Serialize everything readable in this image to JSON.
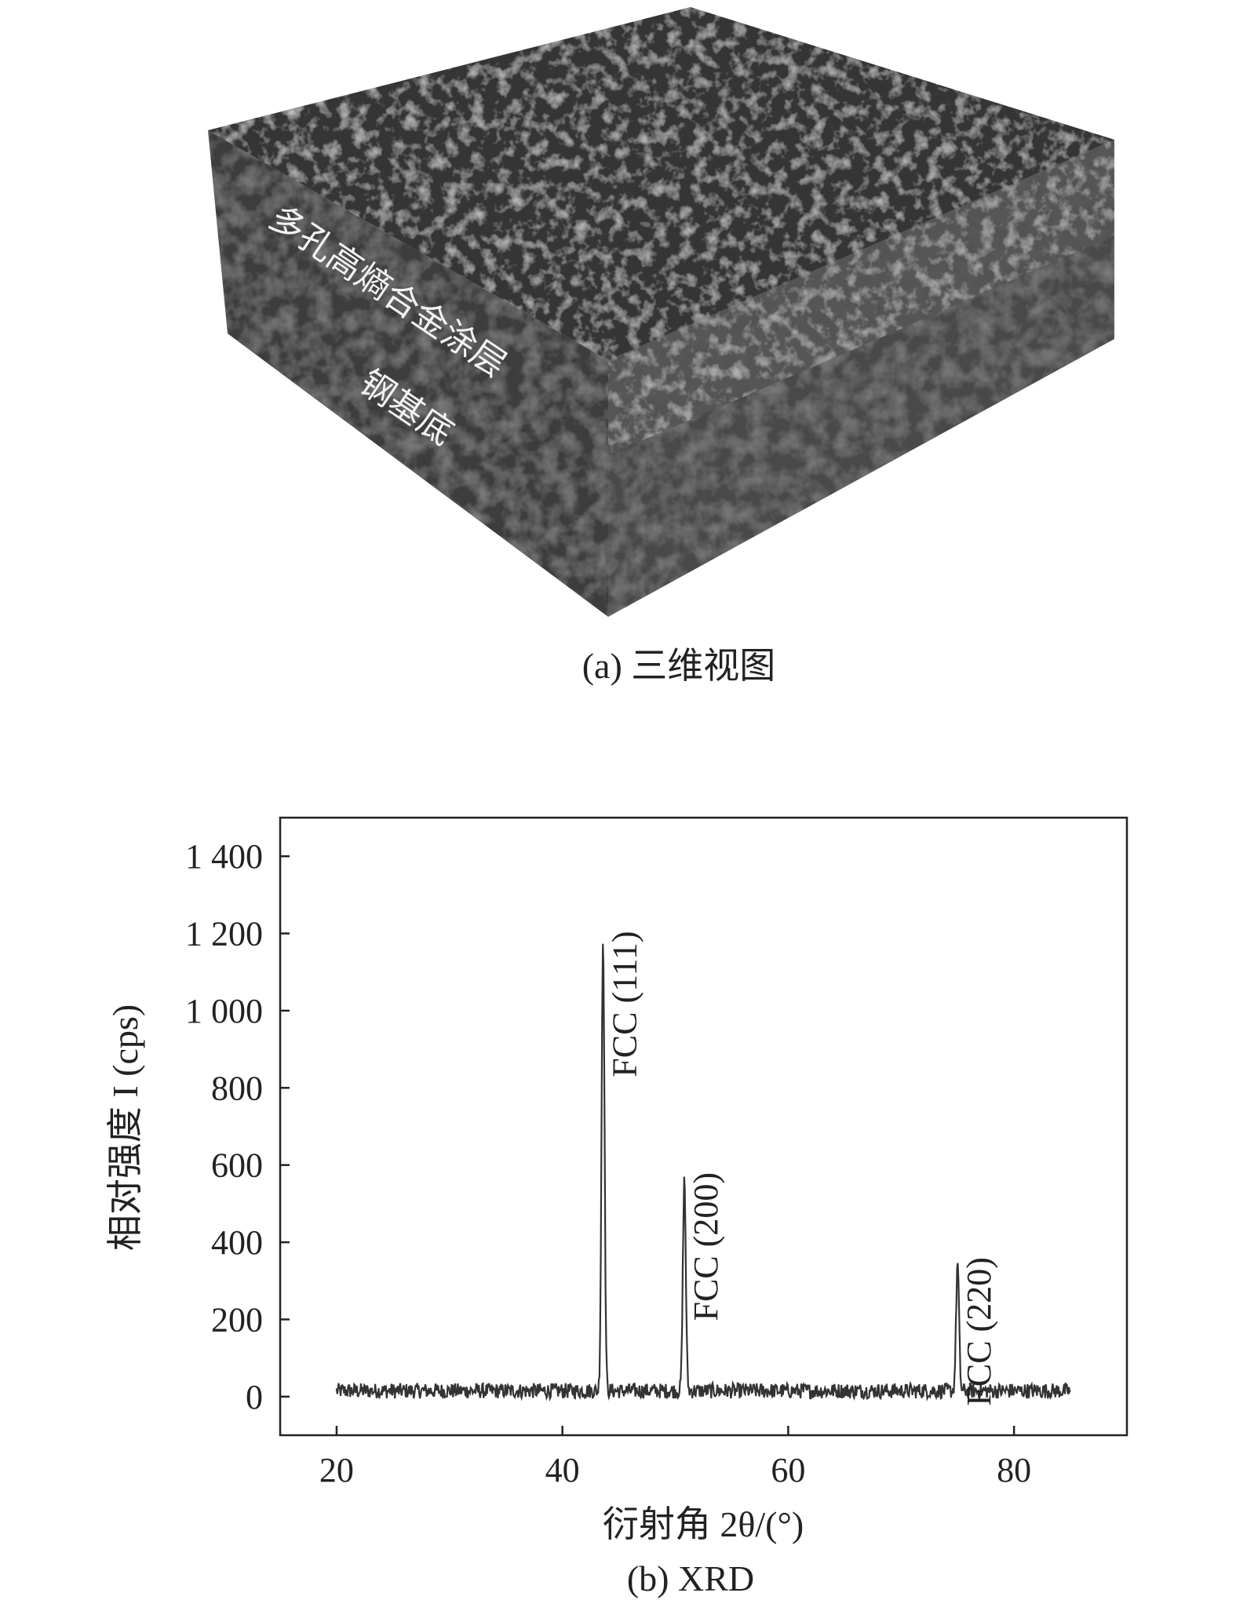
{
  "figure_a": {
    "caption": "(a) 三维视图",
    "label_coating": "多孔高熵合金涂层",
    "label_substrate": "钢基底"
  },
  "figure_b": {
    "caption": "(b) XRD"
  },
  "chart_data": {
    "type": "line",
    "title": "",
    "xlabel": "衍射角 2θ/(°)",
    "ylabel": "相对强度 I (cps)",
    "xlim": [
      15,
      90
    ],
    "ylim": [
      -100,
      1500
    ],
    "xticks": [
      20,
      40,
      60,
      80
    ],
    "xtick_labels": [
      "20",
      "40",
      "60",
      "80"
    ],
    "yticks": [
      0,
      200,
      400,
      600,
      800,
      1000,
      1200,
      1400
    ],
    "ytick_labels": [
      "0",
      "200",
      "400",
      "600",
      "800",
      "1 000",
      "1 200",
      "1 400"
    ],
    "grid": false,
    "legend": "none",
    "line_color": "#333333",
    "x_range": [
      20,
      85
    ],
    "baseline_level": 15,
    "noise_amplitude": 20,
    "peaks": [
      {
        "x": 43.6,
        "y": 1190,
        "label": "FCC (111)"
      },
      {
        "x": 50.8,
        "y": 565,
        "label": "FCC (200)"
      },
      {
        "x": 75.0,
        "y": 345,
        "label": "FCC (220)"
      }
    ]
  }
}
